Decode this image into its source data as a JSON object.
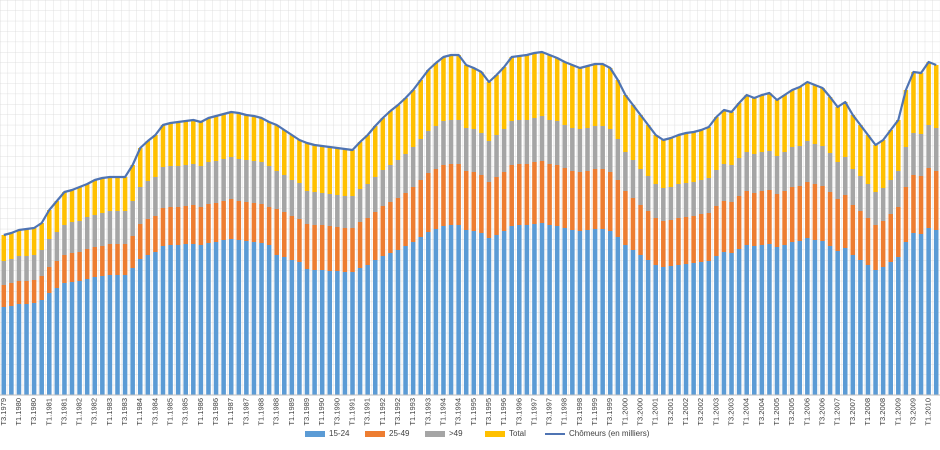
{
  "chart_data": {
    "type": "bar",
    "stacked": true,
    "grid": true,
    "legend": "bottom",
    "ylim": [
      0,
      3950
    ],
    "categories": [
      "T3.1979",
      null,
      "T1.1980",
      null,
      "T3.1980",
      null,
      "T1.1981",
      null,
      "T3.1981",
      null,
      "T1.1982",
      null,
      "T3.1982",
      null,
      "T1.1983",
      null,
      "T3.1983",
      null,
      "T1.1984",
      null,
      "T3.1984",
      null,
      "T1.1985",
      null,
      "T3.1985",
      null,
      "T1.1986",
      null,
      "T3.1986",
      null,
      "T1.1987",
      null,
      "T3.1987",
      null,
      "T1.1988",
      null,
      "T3.1988",
      null,
      "T1.1989",
      null,
      "T3.1989",
      null,
      "T1.1990",
      null,
      "T3.1990",
      null,
      "T1.1991",
      null,
      "T3.1991",
      null,
      "T1.1992",
      null,
      "T3.1992",
      null,
      "T1.1993",
      null,
      "T3.1993",
      null,
      "T1.1994",
      null,
      "T3.1994",
      null,
      "T1.1995",
      null,
      "T3.1995",
      null,
      "T1.1996",
      null,
      "T3.1996",
      null,
      "T1.1997",
      null,
      "T3.1997",
      null,
      "T1.1998",
      null,
      "T3.1998",
      null,
      "T1.1999",
      null,
      "T3.1999",
      null,
      "T1.2000",
      null,
      "T3.2000",
      null,
      "T1.2001",
      null,
      "T3.2001",
      null,
      "T1.2002",
      null,
      "T3.2002",
      null,
      "T1.2003",
      null,
      "T3.2003",
      null,
      "T1.2004",
      null,
      "T3.2004",
      null,
      "T1.2005",
      null,
      "T3.2005",
      null,
      "T1.2006",
      null,
      "T3.2006",
      null,
      "T1.2007",
      null,
      "T3.2007",
      null,
      "T1.2008",
      null,
      "T3.2008",
      null,
      "T1.2009",
      null,
      "T3.2009",
      null,
      "T1.2010",
      null
    ],
    "series": [
      {
        "name": "15-24",
        "color": "#5b9bd5",
        "values": [
          880,
          890,
          910,
          910,
          920,
          950,
          1020,
          1070,
          1120,
          1130,
          1140,
          1160,
          1180,
          1190,
          1200,
          1200,
          1200,
          1270,
          1360,
          1400,
          1430,
          1490,
          1500,
          1500,
          1510,
          1510,
          1500,
          1520,
          1530,
          1550,
          1560,
          1550,
          1540,
          1530,
          1520,
          1500,
          1400,
          1380,
          1350,
          1330,
          1260,
          1250,
          1250,
          1240,
          1240,
          1230,
          1230,
          1270,
          1300,
          1350,
          1390,
          1420,
          1450,
          1490,
          1530,
          1580,
          1630,
          1660,
          1690,
          1700,
          1700,
          1650,
          1640,
          1620,
          1570,
          1600,
          1640,
          1690,
          1700,
          1700,
          1710,
          1720,
          1700,
          1690,
          1670,
          1650,
          1640,
          1650,
          1660,
          1660,
          1640,
          1580,
          1500,
          1450,
          1400,
          1350,
          1300,
          1280,
          1290,
          1300,
          1310,
          1320,
          1330,
          1340,
          1390,
          1430,
          1420,
          1460,
          1500,
          1490,
          1500,
          1510,
          1480,
          1500,
          1530,
          1540,
          1570,
          1550,
          1540,
          1490,
          1440,
          1470,
          1400,
          1350,
          1300,
          1250,
          1280,
          1330,
          1380,
          1530,
          1620,
          1610,
          1670,
          1650
        ]
      },
      {
        "name": "25-49",
        "color": "#ed7d31",
        "values": [
          220,
          230,
          230,
          230,
          230,
          240,
          260,
          270,
          280,
          290,
          290,
          300,
          300,
          300,
          310,
          310,
          310,
          320,
          350,
          360,
          360,
          380,
          380,
          380,
          380,
          390,
          380,
          390,
          390,
          390,
          400,
          390,
          390,
          390,
          390,
          380,
          460,
          450,
          440,
          430,
          450,
          450,
          450,
          450,
          440,
          440,
          440,
          460,
          470,
          480,
          500,
          510,
          520,
          530,
          550,
          570,
          590,
          600,
          610,
          610,
          610,
          590,
          590,
          580,
          560,
          580,
          590,
          610,
          610,
          610,
          620,
          620,
          610,
          610,
          600,
          590,
          590,
          590,
          600,
          600,
          590,
          570,
          540,
          520,
          500,
          490,
          470,
          460,
          460,
          470,
          470,
          470,
          480,
          480,
          500,
          510,
          510,
          530,
          540,
          530,
          540,
          540,
          530,
          540,
          550,
          550,
          560,
          560,
          550,
          540,
          520,
          530,
          500,
          490,
          470,
          450,
          460,
          480,
          500,
          550,
          580,
          580,
          600,
          590
        ]
      },
      {
        "name": ">49",
        "color": "#a5a5a5",
        "values": [
          240,
          240,
          250,
          250,
          250,
          260,
          280,
          290,
          300,
          310,
          310,
          320,
          320,
          330,
          330,
          330,
          330,
          350,
          370,
          380,
          390,
          410,
          410,
          410,
          410,
          410,
          410,
          420,
          420,
          420,
          420,
          420,
          420,
          420,
          420,
          410,
          380,
          370,
          360,
          360,
          330,
          330,
          320,
          320,
          320,
          320,
          320,
          330,
          340,
          350,
          360,
          370,
          380,
          390,
          400,
          410,
          420,
          430,
          440,
          440,
          440,
          430,
          430,
          420,
          410,
          420,
          430,
          440,
          440,
          440,
          440,
          450,
          440,
          440,
          430,
          430,
          430,
          430,
          430,
          430,
          430,
          410,
          390,
          380,
          360,
          350,
          340,
          330,
          330,
          340,
          340,
          340,
          340,
          350,
          360,
          370,
          370,
          380,
          390,
          390,
          390,
          390,
          380,
          390,
          400,
          400,
          410,
          400,
          400,
          390,
          370,
          380,
          360,
          350,
          340,
          330,
          330,
          340,
          360,
          400,
          420,
          420,
          430,
          430
        ]
      },
      {
        "name": "Total",
        "color": "#ffc000",
        "values": [
          260,
          260,
          260,
          270,
          270,
          270,
          290,
          310,
          330,
          320,
          340,
          330,
          350,
          350,
          340,
          340,
          340,
          360,
          390,
          400,
          420,
          420,
          430,
          440,
          440,
          440,
          440,
          440,
          450,
          450,
          450,
          460,
          450,
          450,
          440,
          440,
          460,
          450,
          450,
          430,
          480,
          470,
          470,
          470,
          470,
          470,
          460,
          470,
          490,
          510,
          520,
          540,
          550,
          560,
          570,
          590,
          610,
          630,
          640,
          650,
          650,
          630,
          610,
          610,
          590,
          600,
          620,
          640,
          640,
          650,
          650,
          640,
          650,
          630,
          630,
          630,
          610,
          620,
          620,
          620,
          610,
          590,
          570,
          550,
          540,
          510,
          490,
          480,
          490,
          490,
          500,
          500,
          500,
          510,
          530,
          540,
          530,
          550,
          570,
          560,
          570,
          580,
          560,
          570,
          570,
          590,
          590,
          590,
          580,
          560,
          550,
          550,
          540,
          510,
          490,
          470,
          480,
          500,
          510,
          570,
          610,
          610,
          630,
          630
        ]
      },
      {
        "name": "Chômeurs (en milliers)",
        "type": "line",
        "color": "#4f74b3",
        "values": [
          1600,
          1620,
          1650,
          1660,
          1670,
          1720,
          1850,
          1940,
          2030,
          2050,
          2080,
          2110,
          2150,
          2170,
          2180,
          2180,
          2180,
          2300,
          2470,
          2540,
          2600,
          2700,
          2720,
          2730,
          2740,
          2750,
          2730,
          2770,
          2790,
          2810,
          2830,
          2820,
          2800,
          2790,
          2770,
          2730,
          2700,
          2650,
          2600,
          2550,
          2520,
          2500,
          2490,
          2480,
          2470,
          2460,
          2450,
          2530,
          2600,
          2690,
          2770,
          2840,
          2900,
          2970,
          3050,
          3150,
          3250,
          3320,
          3380,
          3400,
          3400,
          3300,
          3270,
          3230,
          3130,
          3200,
          3280,
          3380,
          3390,
          3400,
          3420,
          3430,
          3400,
          3370,
          3330,
          3300,
          3270,
          3290,
          3310,
          3310,
          3270,
          3150,
          3000,
          2900,
          2800,
          2700,
          2600,
          2550,
          2570,
          2600,
          2620,
          2630,
          2650,
          2680,
          2780,
          2850,
          2830,
          2920,
          3000,
          2970,
          3000,
          3020,
          2950,
          3000,
          3050,
          3080,
          3130,
          3100,
          3070,
          2980,
          2880,
          2930,
          2800,
          2700,
          2600,
          2500,
          2550,
          2650,
          2750,
          3050,
          3230,
          3220,
          3330,
          3300
        ]
      }
    ]
  }
}
